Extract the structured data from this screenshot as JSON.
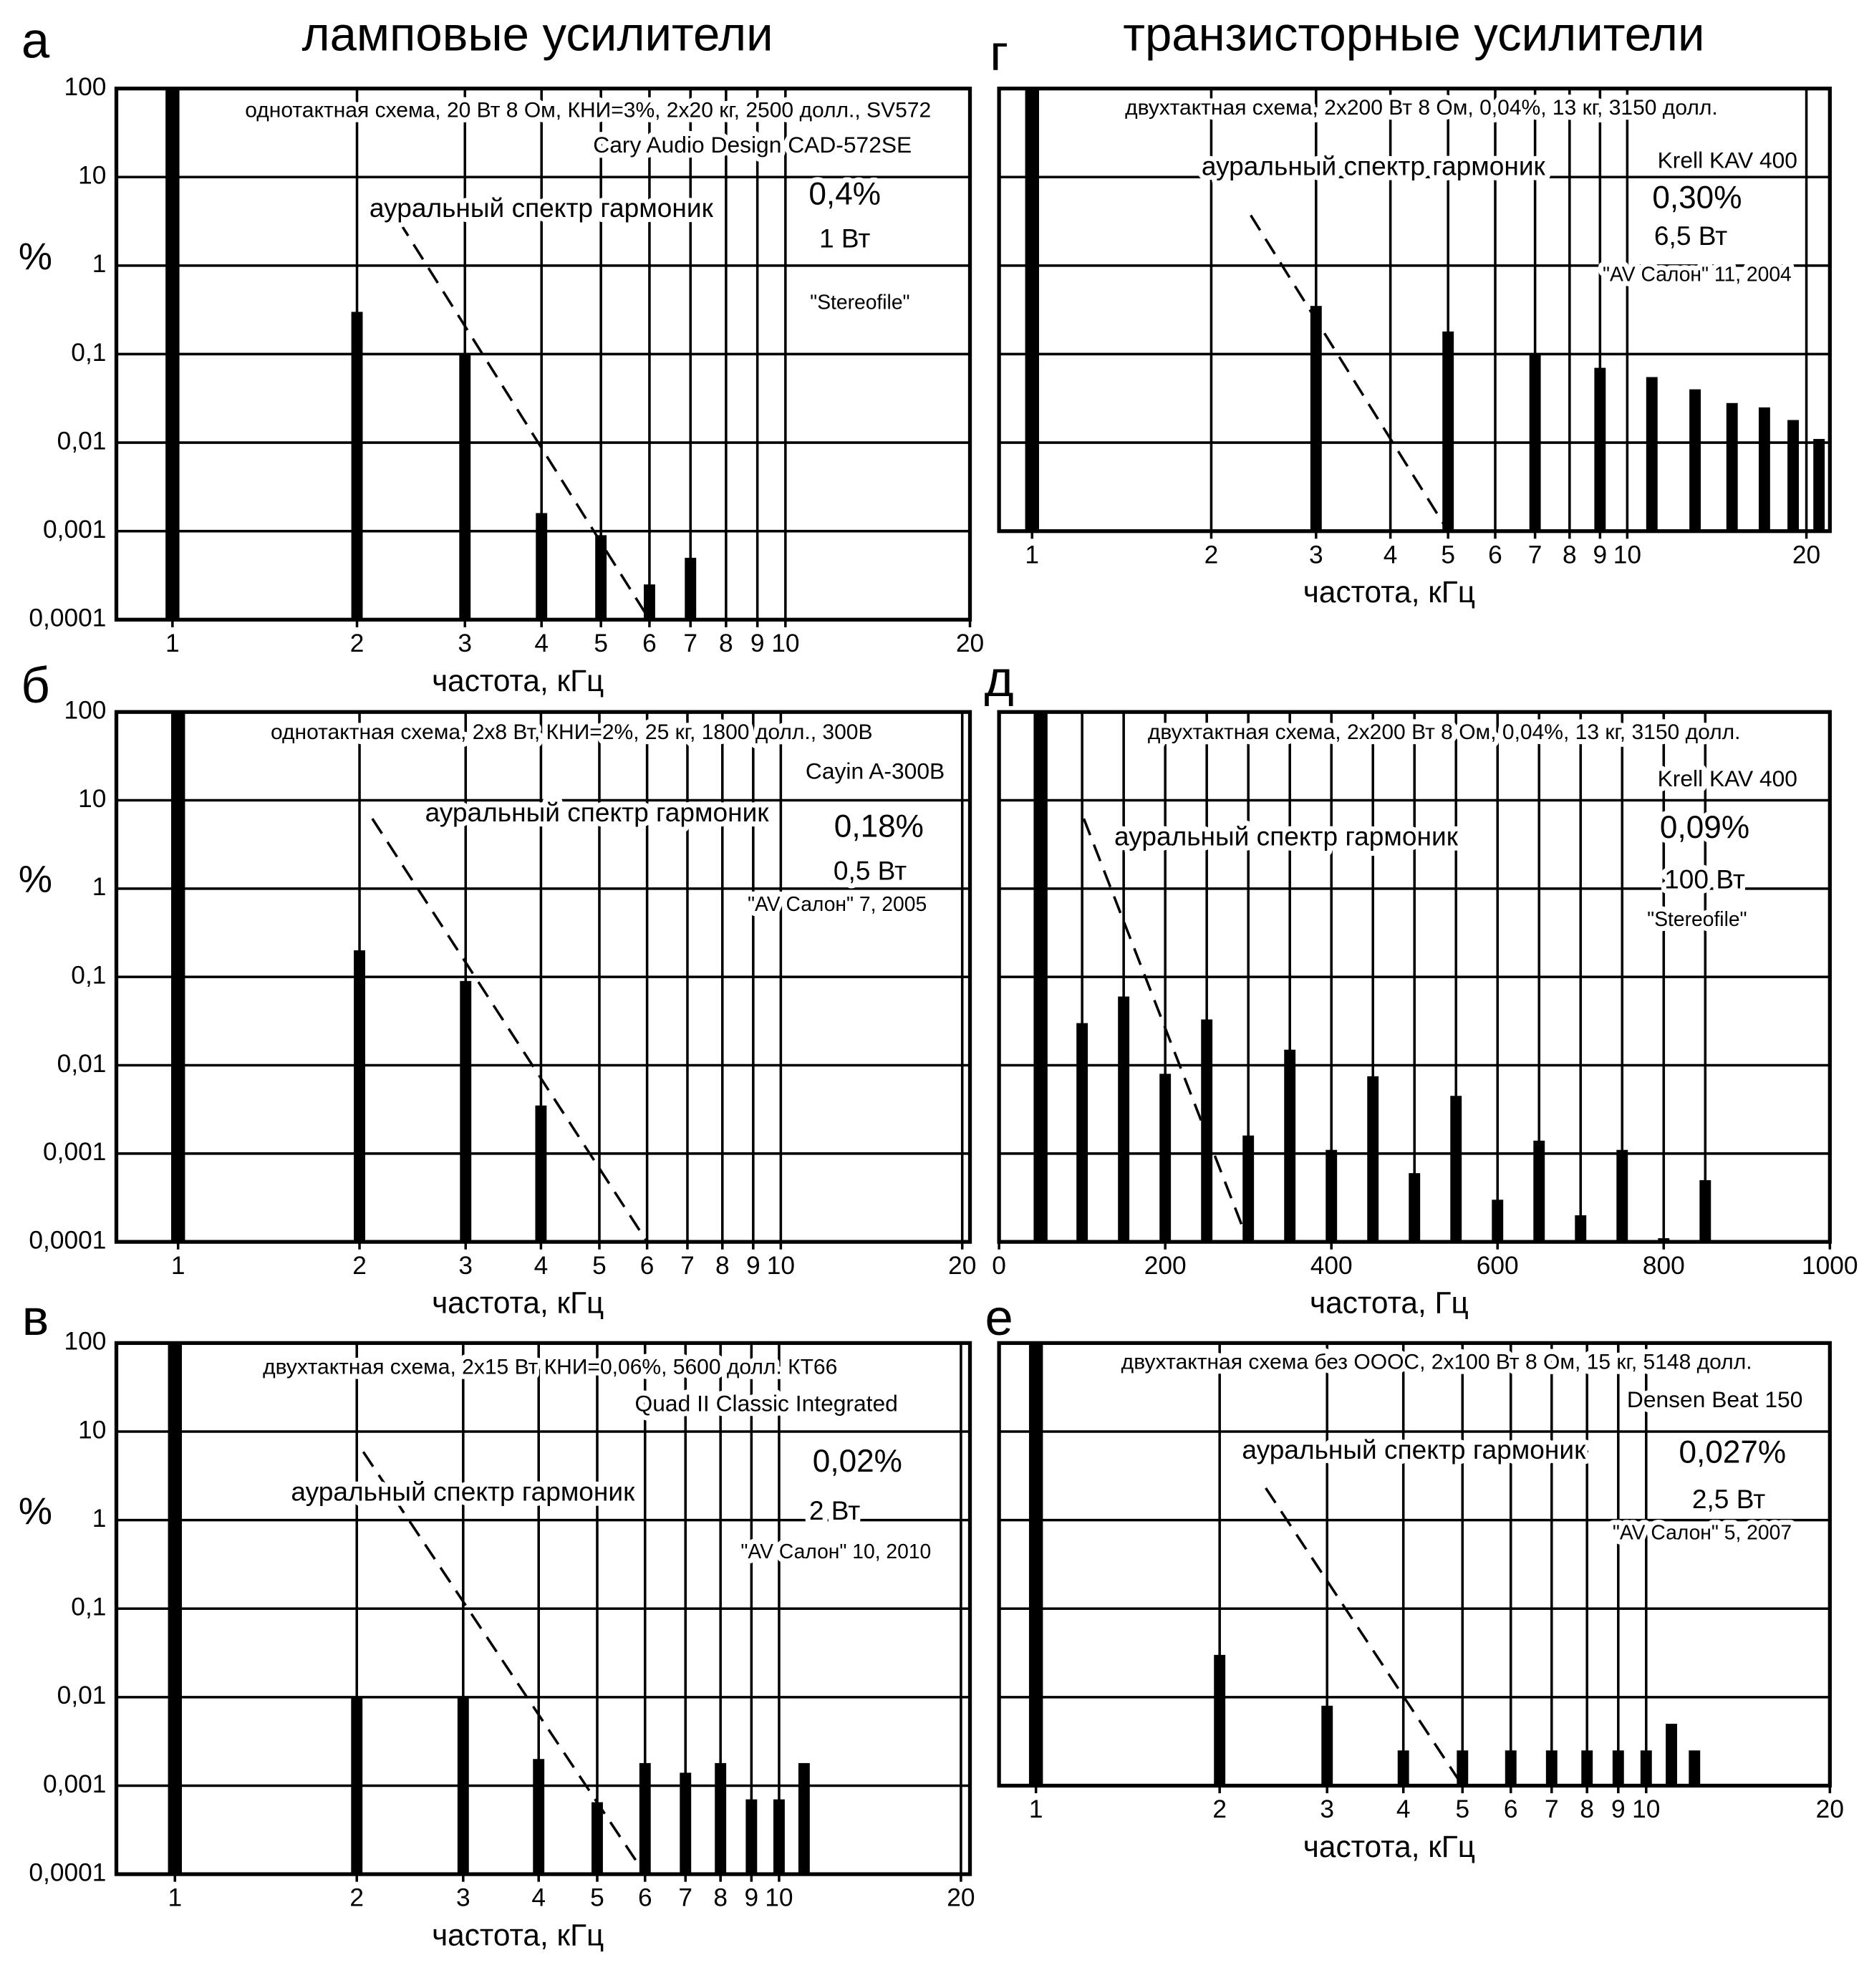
{
  "column_titles": [
    "ламповые усилители",
    "транзисторные усилители"
  ],
  "chart_data": [
    {
      "type": "bar",
      "label": "а",
      "xscale": "log",
      "yscale": "log",
      "ylabel": "%",
      "xlabel": "частота, кГц",
      "annotations": [
        "однотактная схема, 20 Вт 8 Ом, КНИ=3%, 2х20 кг, 2500 долл., SV572",
        "Cary Audio Design CAD-572SE",
        "аурaльный спектр гармоник",
        "0,4%",
        "1 Вт",
        "\"Stereofile\""
      ],
      "x": [
        1,
        2,
        3,
        4,
        5,
        6,
        7
      ],
      "values": [
        100,
        0.3,
        0.1,
        0.0016,
        0.0009,
        0.00025,
        0.0005
      ],
      "color": "#000000",
      "xlim": [
        0.81,
        20
      ],
      "ylim": [
        0.0001,
        100
      ],
      "xticks": [
        1,
        2,
        3,
        4,
        5,
        6,
        7,
        8,
        9,
        10,
        20
      ],
      "yticks": [
        100,
        10,
        1,
        {
          "value": 0.1,
          "label": "0,1"
        },
        {
          "value": 0.01,
          "label": "0,01"
        },
        {
          "value": 0.001,
          "label": "0,001"
        },
        {
          "value": 0.0001,
          "label": "0,0001"
        }
      ],
      "ytick_labels": true,
      "aural_line": {
        "x": [
          2.34,
          6
        ],
        "y": [
          3.2,
          0.0001
        ]
      }
    },
    {
      "type": "bar",
      "label": "б",
      "xscale": "log",
      "yscale": "log",
      "ylabel": "%",
      "xlabel": "частота, кГц",
      "annotations": [
        "однотактная схема, 2х8 Вт, КНИ=2%, 25 кг, 1800 долл., 300В",
        "Cayin A-300B",
        "аурaльный спектр гармоник",
        "0,18%",
        "0,5 Вт",
        "\"AV Салон\" 7, 2005"
      ],
      "x": [
        1,
        2,
        3,
        4
      ],
      "values": [
        100,
        0.2,
        0.09,
        0.0035
      ],
      "color": "#000000",
      "xlim": [
        0.79,
        20.6
      ],
      "ylim": [
        0.0001,
        100
      ],
      "xticks": [
        1,
        2,
        3,
        4,
        5,
        6,
        7,
        8,
        9,
        10,
        20
      ],
      "yticks": [
        100,
        10,
        1,
        {
          "value": 0.1,
          "label": "0,1"
        },
        {
          "value": 0.01,
          "label": "0,01"
        },
        {
          "value": 0.001,
          "label": "0,001"
        },
        {
          "value": 0.0001,
          "label": "0,0001"
        }
      ],
      "ytick_labels": true,
      "aural_line": {
        "x": [
          2.1,
          6
        ],
        "y": [
          6.2,
          0.0001
        ]
      }
    },
    {
      "type": "bar",
      "label": "в",
      "xscale": "log",
      "yscale": "log",
      "ylabel": "%",
      "xlabel": "частота, кГц",
      "annotations": [
        "двухтактная схема, 2х15 Вт КНИ=0,06%,  5600 долл. КТ66",
        "Quad II Classic Integrated",
        "аурaльный спектр гармоник",
        "0,02%",
        "2 Вт",
        "\"AV Салон\" 10, 2010"
      ],
      "x": [
        1,
        2,
        3,
        4,
        5,
        6,
        7,
        8,
        9,
        10,
        11
      ],
      "values": [
        100,
        0.01,
        0.01,
        0.002,
        0.00065,
        0.0018,
        0.0014,
        0.0018,
        0.0007,
        0.0007,
        0.0018
      ],
      "color": "#000000",
      "xlim": [
        0.8,
        20.7
      ],
      "ylim": [
        0.0001,
        100
      ],
      "xticks": [
        1,
        2,
        3,
        4,
        5,
        6,
        7,
        8,
        9,
        10,
        20
      ],
      "yticks": [
        100,
        10,
        1,
        {
          "value": 0.1,
          "label": "0,1"
        },
        {
          "value": 0.01,
          "label": "0,01"
        },
        {
          "value": 0.001,
          "label": "0,001"
        },
        {
          "value": 0.0001,
          "label": "0,0001"
        }
      ],
      "ytick_labels": true,
      "aural_line": {
        "x": [
          2.05,
          6
        ],
        "y": [
          5.9,
          0.0001
        ]
      }
    },
    {
      "type": "bar",
      "label": "г",
      "xscale": "log",
      "yscale": "log",
      "xlabel": "частота, кГц",
      "annotations": [
        "двухтактная схема, 2х200 Вт 8 Ом, 0,04%, 13 кг, 3150 долл.",
        "Krell KAV 400",
        "аурaльный спектр гармоник",
        "0,30%",
        "6,5 Вт",
        "\"AV Салон\" 11, 2004"
      ],
      "x": [
        1,
        3,
        5,
        7,
        9,
        11,
        13,
        15,
        17,
        19,
        21
      ],
      "values": [
        100,
        0.35,
        0.18,
        0.1,
        0.07,
        0.055,
        0.04,
        0.028,
        0.025,
        0.018,
        0.011
      ],
      "color": "#000000",
      "xlim": [
        0.88,
        21.9
      ],
      "ylim": [
        0.001,
        100
      ],
      "xticks": [
        1,
        2,
        3,
        4,
        5,
        6,
        7,
        8,
        9,
        10,
        20
      ],
      "yticks": [
        100,
        10,
        1,
        0.1,
        0.01,
        0.001
      ],
      "ytick_labels": false,
      "aural_line": {
        "x": [
          2.33,
          5
        ],
        "y": [
          3.7,
          0.001
        ]
      }
    },
    {
      "type": "bar",
      "label": "д",
      "xscale": "linear",
      "yscale": "log",
      "xlabel": "частота, Гц",
      "annotations": [
        "двухтактная схема, 2х200 Вт 8 Ом, 0,04%, 13 кг, 3150 долл.",
        "Krell KAV 400",
        "аурaльный спектр гармоник",
        "0,09%",
        "100 Вт",
        "\"Stereofile\""
      ],
      "x": [
        50,
        100,
        150,
        200,
        250,
        300,
        350,
        400,
        450,
        500,
        550,
        600,
        650,
        700,
        750,
        800,
        850
      ],
      "values": [
        100,
        0.03,
        0.06,
        0.008,
        0.033,
        0.0016,
        0.015,
        0.0011,
        0.0075,
        0.0006,
        0.0045,
        0.0003,
        0.0014,
        0.0002,
        0.0011,
        0.00011,
        0.0005
      ],
      "color": "#000000",
      "xlim": [
        0,
        1000
      ],
      "ylim": [
        0.0001,
        100
      ],
      "xticks": [
        0,
        200,
        400,
        600,
        800,
        1000
      ],
      "yticks": [
        100,
        10,
        1,
        0.1,
        0.01,
        0.001,
        0.0001
      ],
      "ytick_labels": false,
      "aural_line": {
        "x": [
          102,
          300
        ],
        "y": [
          6.2,
          0.0001
        ]
      }
    },
    {
      "type": "bar",
      "label": "е",
      "xscale": "log",
      "yscale": "log",
      "xlabel": "частота, кГц",
      "annotations": [
        "двухтактная схема без ОООС, 2х100 Вт 8 Ом, 15 кг, 5148 долл.",
        "Densen Beat 150",
        "аурaльный спектр гармоник",
        "0,027%",
        "2,5 Вт",
        "\"AV Салон\" 5, 2007"
      ],
      "x": [
        1,
        2,
        3,
        4,
        5,
        6,
        7,
        8,
        9,
        10,
        11,
        12
      ],
      "values": [
        100,
        0.03,
        0.008,
        0.0025,
        0.0025,
        0.0025,
        0.0025,
        0.0025,
        0.0025,
        0.0025,
        0.005,
        0.0025
      ],
      "color": "#000000",
      "xlim": [
        0.87,
        20
      ],
      "ylim": [
        0.001,
        100
      ],
      "xticks": [
        1,
        2,
        3,
        4,
        5,
        6,
        7,
        8,
        9,
        10,
        20
      ],
      "yticks": [
        100,
        10,
        1,
        0.1,
        0.01,
        0.001
      ],
      "ytick_labels": false,
      "aural_line": {
        "x": [
          2.38,
          5
        ],
        "y": [
          2.3,
          0.001
        ]
      }
    }
  ]
}
